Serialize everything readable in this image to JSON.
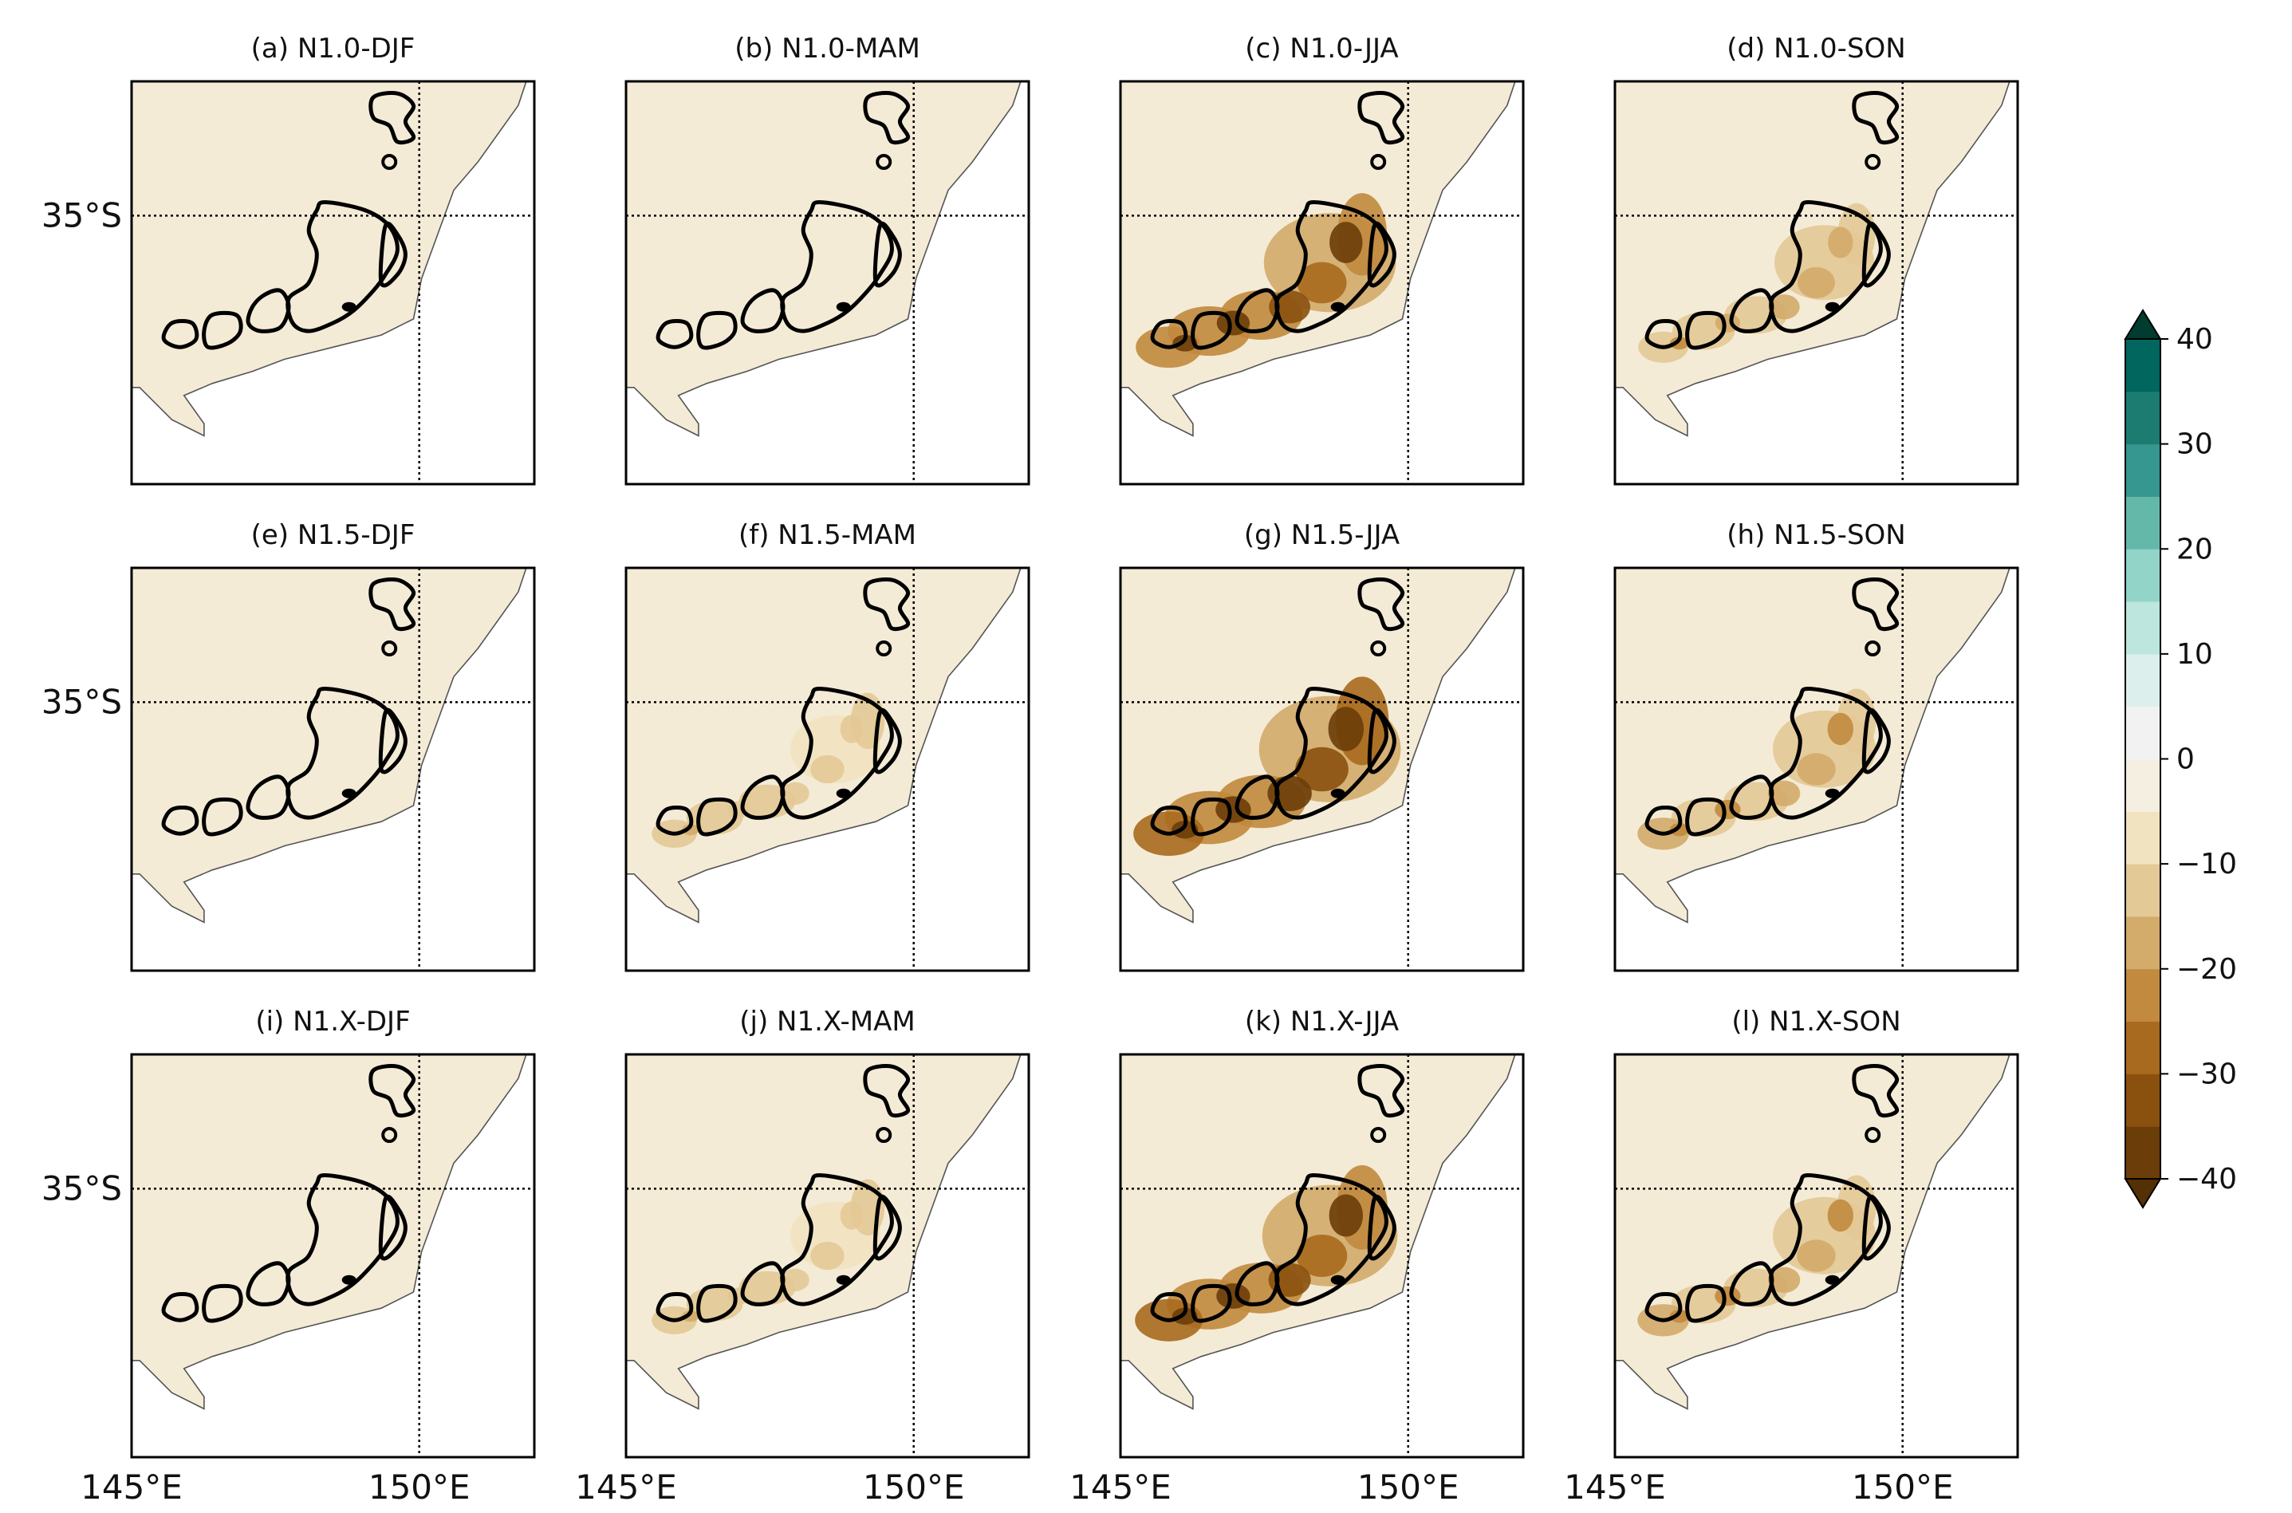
{
  "figure": {
    "lat_label": "35°S",
    "lon_labels": [
      "145°E",
      "150°E"
    ]
  },
  "chart_data": {
    "type": "heatmap",
    "description_variable": "seasonal difference field with terrain contour",
    "x_ticks": [
      "145°E",
      "150°E"
    ],
    "y_ticks": [
      "35°S"
    ],
    "xlim": [
      145,
      152
    ],
    "ylim": [
      -39,
      -33
    ],
    "panels": [
      {
        "id": "a",
        "title": "(a) N1.0-DJF",
        "intensity": 0.05
      },
      {
        "id": "b",
        "title": "(b) N1.0-MAM",
        "intensity": 0.08
      },
      {
        "id": "c",
        "title": "(c) N1.0-JJA",
        "intensity": 0.85
      },
      {
        "id": "d",
        "title": "(d) N1.0-SON",
        "intensity": 0.35
      },
      {
        "id": "e",
        "title": "(e) N1.5-DJF",
        "intensity": 0.05
      },
      {
        "id": "f",
        "title": "(f) N1.5-MAM",
        "intensity": 0.2
      },
      {
        "id": "g",
        "title": "(g) N1.5-JJA",
        "intensity": 1.0
      },
      {
        "id": "h",
        "title": "(h) N1.5-SON",
        "intensity": 0.4
      },
      {
        "id": "i",
        "title": "(i) N1.X-DJF",
        "intensity": 0.05
      },
      {
        "id": "j",
        "title": "(j) N1.X-MAM",
        "intensity": 0.2
      },
      {
        "id": "k",
        "title": "(k) N1.X-JJA",
        "intensity": 0.9
      },
      {
        "id": "l",
        "title": "(l) N1.X-SON",
        "intensity": 0.4
      }
    ],
    "colorbar": {
      "min": -40,
      "max": 40,
      "step": 5,
      "tick_labels": [
        "40",
        "30",
        "20",
        "10",
        "0",
        "−10",
        "−20",
        "−30",
        "−40"
      ],
      "tick_values": [
        40,
        30,
        20,
        10,
        0,
        -10,
        -20,
        -30,
        -40
      ],
      "colors": [
        "#543005",
        "#6b3d09",
        "#8a510e",
        "#a86a1e",
        "#c18a3e",
        "#d3ab6a",
        "#e3c996",
        "#f2e3c0",
        "#f4efe0",
        "#f2f2f2",
        "#dcefec",
        "#bde6df",
        "#92d4c8",
        "#63b8aa",
        "#35978f",
        "#1c7c72",
        "#01665e",
        "#003c30"
      ],
      "extend": "both"
    }
  }
}
